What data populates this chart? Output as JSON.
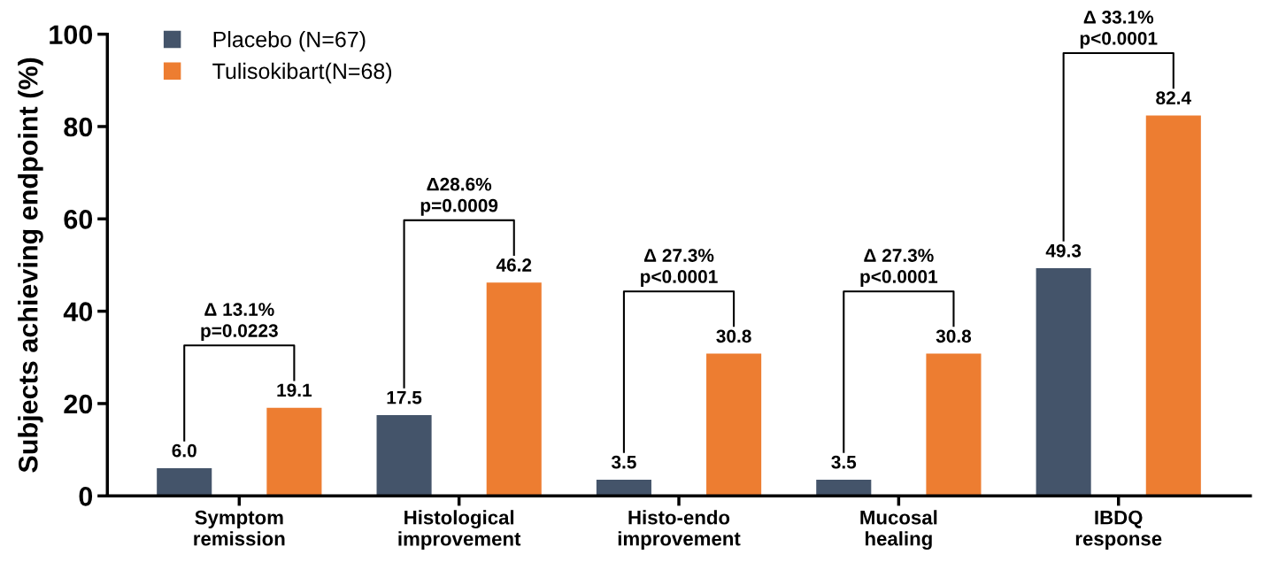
{
  "chart_data": {
    "type": "bar",
    "ylabel": "Subjects achieving endpoint (%)",
    "categories": [
      "Symptom\nremission",
      "Histological\nimprovement",
      "Histo-endo\nimprovement",
      "Mucosal\nhealing",
      "IBDQ\nresponse"
    ],
    "series": [
      {
        "name": "Placebo (N=67)",
        "color": "#44546a",
        "values": [
          6.0,
          17.5,
          3.5,
          3.5,
          49.3
        ],
        "value_labels": [
          "6.0",
          "17.5",
          "3.5",
          "3.5",
          "49.3"
        ]
      },
      {
        "name": "Tulisokibart(N=68)",
        "color": "#ed7d31",
        "values": [
          19.1,
          46.2,
          30.8,
          30.8,
          82.4
        ],
        "value_labels": [
          "19.1",
          "46.2",
          "30.8",
          "30.8",
          "82.4"
        ]
      }
    ],
    "ylim": [
      0,
      100
    ],
    "yticks": [
      0,
      20,
      40,
      60,
      80,
      100
    ],
    "grid": false,
    "legend": "top left",
    "annotations": [
      "Δ 13.1%\np=0.0223",
      "Δ28.6%\np=0.0009",
      "Δ 27.3%\np<0.0001",
      "Δ 27.3%\np<0.0001",
      "Δ 33.1%\np<0.0001"
    ]
  }
}
